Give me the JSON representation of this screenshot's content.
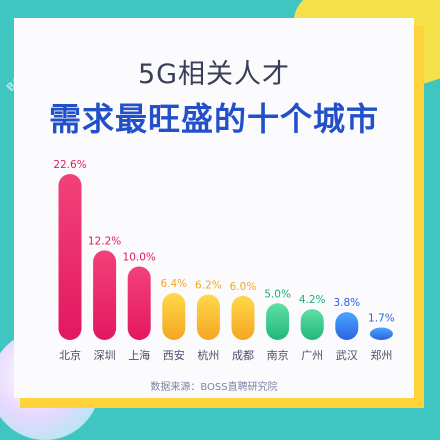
{
  "header": {
    "title_line1": "5G相关人才",
    "title_line2": "需求最旺盛的十个城市"
  },
  "footer": {
    "source": "数据来源：BOSS直聘研究院"
  },
  "watermark": "BOSS直聘",
  "colors": {
    "background": "#3fc6c0",
    "accent_yellow": "#f6e04a",
    "title_blue": "#2250c9"
  },
  "chart_data": {
    "type": "bar",
    "categories": [
      "北京",
      "深圳",
      "上海",
      "西安",
      "杭州",
      "成都",
      "南京",
      "广州",
      "武汉",
      "郑州"
    ],
    "values": [
      22.6,
      12.2,
      10.0,
      6.4,
      6.2,
      6.0,
      5.0,
      4.2,
      3.8,
      1.7
    ],
    "labels": [
      "22.6%",
      "12.2%",
      "10.0%",
      "6.4%",
      "6.2%",
      "6.0%",
      "5.0%",
      "4.2%",
      "3.8%",
      "1.7%"
    ],
    "unit": "%",
    "bar_colors": [
      [
        "#f2417a",
        "#e3185f"
      ],
      [
        "#f2417a",
        "#e3185f"
      ],
      [
        "#f2417a",
        "#e3185f"
      ],
      [
        "#ffd84a",
        "#f5a623"
      ],
      [
        "#ffd84a",
        "#f5a623"
      ],
      [
        "#ffd84a",
        "#f5a623"
      ],
      [
        "#5ee0a4",
        "#23b67d"
      ],
      [
        "#5ee0a4",
        "#23b67d"
      ],
      [
        "#4aa6ff",
        "#2c63e0"
      ],
      [
        "#4aa6ff",
        "#2c63e0"
      ]
    ],
    "label_colors": [
      "#e3185f",
      "#e3185f",
      "#e3185f",
      "#f5a623",
      "#f5a623",
      "#f5a623",
      "#1fae74",
      "#1fae74",
      "#2c63e0",
      "#2c63e0"
    ],
    "grid": false,
    "title": "",
    "xlabel": "",
    "ylabel": ""
  }
}
